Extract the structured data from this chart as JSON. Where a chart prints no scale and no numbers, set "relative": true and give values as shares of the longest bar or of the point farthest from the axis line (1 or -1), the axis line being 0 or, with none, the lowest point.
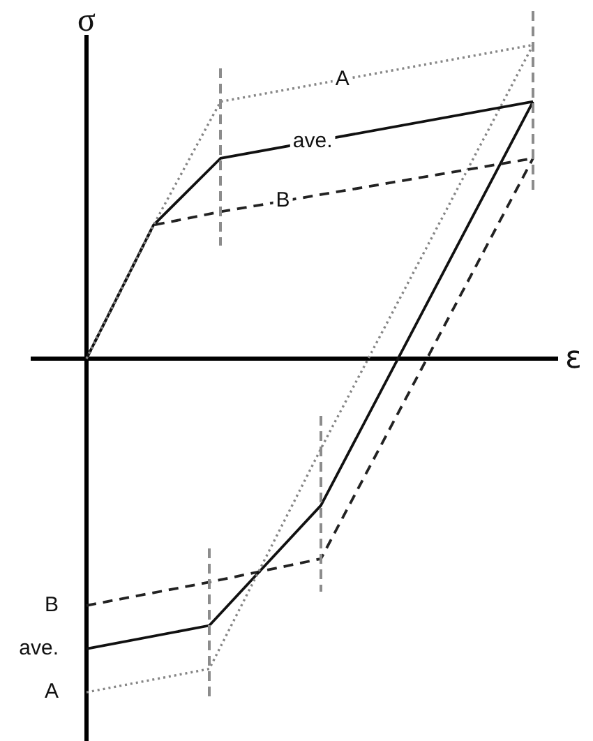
{
  "chart_data": {
    "type": "line",
    "relative": true,
    "xlabel": "ε",
    "ylabel": "σ",
    "categories": [
      null,
      null,
      null,
      null,
      null,
      null,
      null,
      null,
      null,
      null,
      null,
      null,
      null,
      null,
      null,
      null,
      null,
      null,
      null,
      null,
      null,
      null,
      null,
      null,
      null,
      null,
      null,
      null,
      null,
      null,
      null,
      null,
      null,
      null,
      null,
      null,
      null,
      null,
      null,
      null,
      null
    ],
    "series": [
      {
        "name": "A",
        "color": "#858585",
        "line_style": "dotted",
        "values": [
          0,
          null,
          null,
          null,
          null,
          null,
          0.4,
          null,
          null,
          null,
          null,
          null,
          0.77,
          null,
          null,
          null,
          null,
          null,
          null,
          null,
          null,
          null,
          null,
          null,
          null,
          null,
          null,
          null,
          null,
          null,
          null,
          null,
          null,
          null,
          null,
          null,
          null,
          null,
          null,
          null,
          0.94
        ]
      },
      {
        "name": "ave.",
        "color": "#111111",
        "line_style": "solid",
        "values": [
          0,
          null,
          null,
          null,
          null,
          null,
          0.4,
          null,
          null,
          null,
          null,
          null,
          0.6,
          null,
          null,
          null,
          null,
          null,
          null,
          null,
          null,
          null,
          null,
          null,
          null,
          null,
          null,
          null,
          null,
          null,
          null,
          null,
          null,
          null,
          null,
          null,
          null,
          null,
          null,
          null,
          0.77
        ]
      },
      {
        "name": "B",
        "color": "#222222",
        "line_style": "dashed",
        "values": [
          0,
          null,
          null,
          null,
          null,
          null,
          0.4,
          null,
          null,
          null,
          null,
          null,
          0.44,
          null,
          null,
          null,
          null,
          null,
          null,
          null,
          null,
          null,
          null,
          null,
          null,
          null,
          null,
          null,
          null,
          null,
          null,
          null,
          null,
          null,
          null,
          null,
          null,
          null,
          null,
          null,
          0.6
        ]
      },
      {
        "name": "A",
        "color": "#858585",
        "line_style": "dotted",
        "values": [
          -1,
          null,
          null,
          null,
          null,
          null,
          null,
          null,
          null,
          null,
          null,
          -0.93,
          null,
          null,
          null,
          null,
          null,
          null,
          null,
          null,
          null,
          -0.27,
          null,
          null,
          null,
          null,
          null,
          null,
          null,
          null,
          null,
          null,
          null,
          null,
          null,
          null,
          null,
          null,
          null,
          null,
          0.94
        ]
      },
      {
        "name": "ave.",
        "color": "#111111",
        "line_style": "solid",
        "values": [
          -0.87,
          null,
          null,
          null,
          null,
          null,
          null,
          null,
          null,
          null,
          null,
          -0.8,
          null,
          null,
          null,
          null,
          null,
          null,
          null,
          null,
          null,
          -0.44,
          null,
          null,
          null,
          null,
          null,
          null,
          null,
          null,
          null,
          null,
          null,
          null,
          null,
          null,
          null,
          null,
          null,
          null,
          0.77
        ]
      },
      {
        "name": "B",
        "color": "#222222",
        "line_style": "dashed",
        "values": [
          -0.74,
          null,
          null,
          null,
          null,
          null,
          null,
          null,
          null,
          null,
          null,
          -0.67,
          null,
          null,
          null,
          null,
          null,
          null,
          null,
          null,
          null,
          -0.6,
          null,
          null,
          null,
          null,
          null,
          null,
          null,
          null,
          null,
          null,
          null,
          null,
          null,
          null,
          null,
          null,
          null,
          null,
          0.6
        ]
      }
    ]
  }
}
